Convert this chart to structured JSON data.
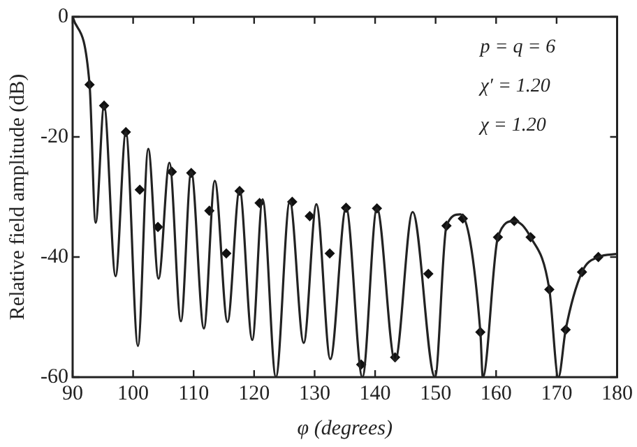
{
  "chart_data": {
    "type": "line",
    "xlabel": "φ (degrees)",
    "ylabel": "Relative field amplitude (dB)",
    "xlim": [
      90,
      180
    ],
    "xticks": [
      90,
      100,
      110,
      120,
      130,
      140,
      150,
      160,
      170,
      180
    ],
    "ylim": [
      -60,
      0
    ],
    "yticks": [
      -60,
      -40,
      -20,
      0
    ],
    "grid": false,
    "legend": false,
    "annotations": [
      "p = q = 6",
      "χ′ = 1.20",
      "χ = 1.20"
    ],
    "series": [
      {
        "color": "#222222",
        "marker": "none",
        "line_style": "solid",
        "x": [
          90,
          92.8,
          93.8,
          95.2,
          97.1,
          98.8,
          100.8,
          102.5,
          104.2,
          106,
          107.9,
          109.6,
          111.7,
          113.5,
          115.6,
          117.6,
          119.7,
          121.4,
          123.6,
          125.9,
          128.2,
          130.3,
          132.6,
          135.2,
          137.9,
          140.3,
          143.3,
          146.2,
          149.9,
          151.8,
          154.1,
          157.4,
          157.8,
          160.3,
          163,
          165.7,
          168.8,
          170.3,
          171.5,
          174.2,
          176.9,
          180
        ],
        "values": [
          0,
          -11.3,
          -34.3,
          -14.8,
          -43.2,
          -19.2,
          -54.8,
          -22,
          -43.6,
          -24.3,
          -50.7,
          -25.8,
          -51.9,
          -27.3,
          -50.8,
          -28.8,
          -53.8,
          -30.4,
          -60,
          -30.7,
          -54.3,
          -31.2,
          -57,
          -31.8,
          -60,
          -31.9,
          -57.3,
          -32.5,
          -60,
          -34.8,
          -32.9,
          -52.5,
          -60,
          -36.7,
          -34,
          -36.7,
          -45.4,
          -60,
          -52.1,
          -42.5,
          -40,
          -39.5
        ]
      },
      {
        "type": "scatter",
        "color": "#111111",
        "marker": "diamond",
        "x": [
          92.8,
          95.2,
          98.8,
          101.1,
          104.1,
          106.4,
          109.6,
          112.6,
          115.4,
          117.6,
          120.9,
          126.3,
          129.2,
          132.5,
          135.2,
          137.7,
          140.3,
          143.3,
          148.8,
          151.8,
          154.5,
          157.4,
          160.3,
          163,
          165.7,
          168.8,
          171.5,
          174.2,
          176.9
        ],
        "values": [
          -11.3,
          -14.8,
          -19.2,
          -28.8,
          -35,
          -25.8,
          -26,
          -32.3,
          -39.4,
          -29,
          -31,
          -30.8,
          -33.2,
          -39.4,
          -31.8,
          -57.9,
          -31.9,
          -56.7,
          -42.8,
          -34.8,
          -33.6,
          -52.5,
          -36.7,
          -34,
          -36.7,
          -45.4,
          -52.1,
          -42.5,
          -40
        ]
      }
    ]
  }
}
